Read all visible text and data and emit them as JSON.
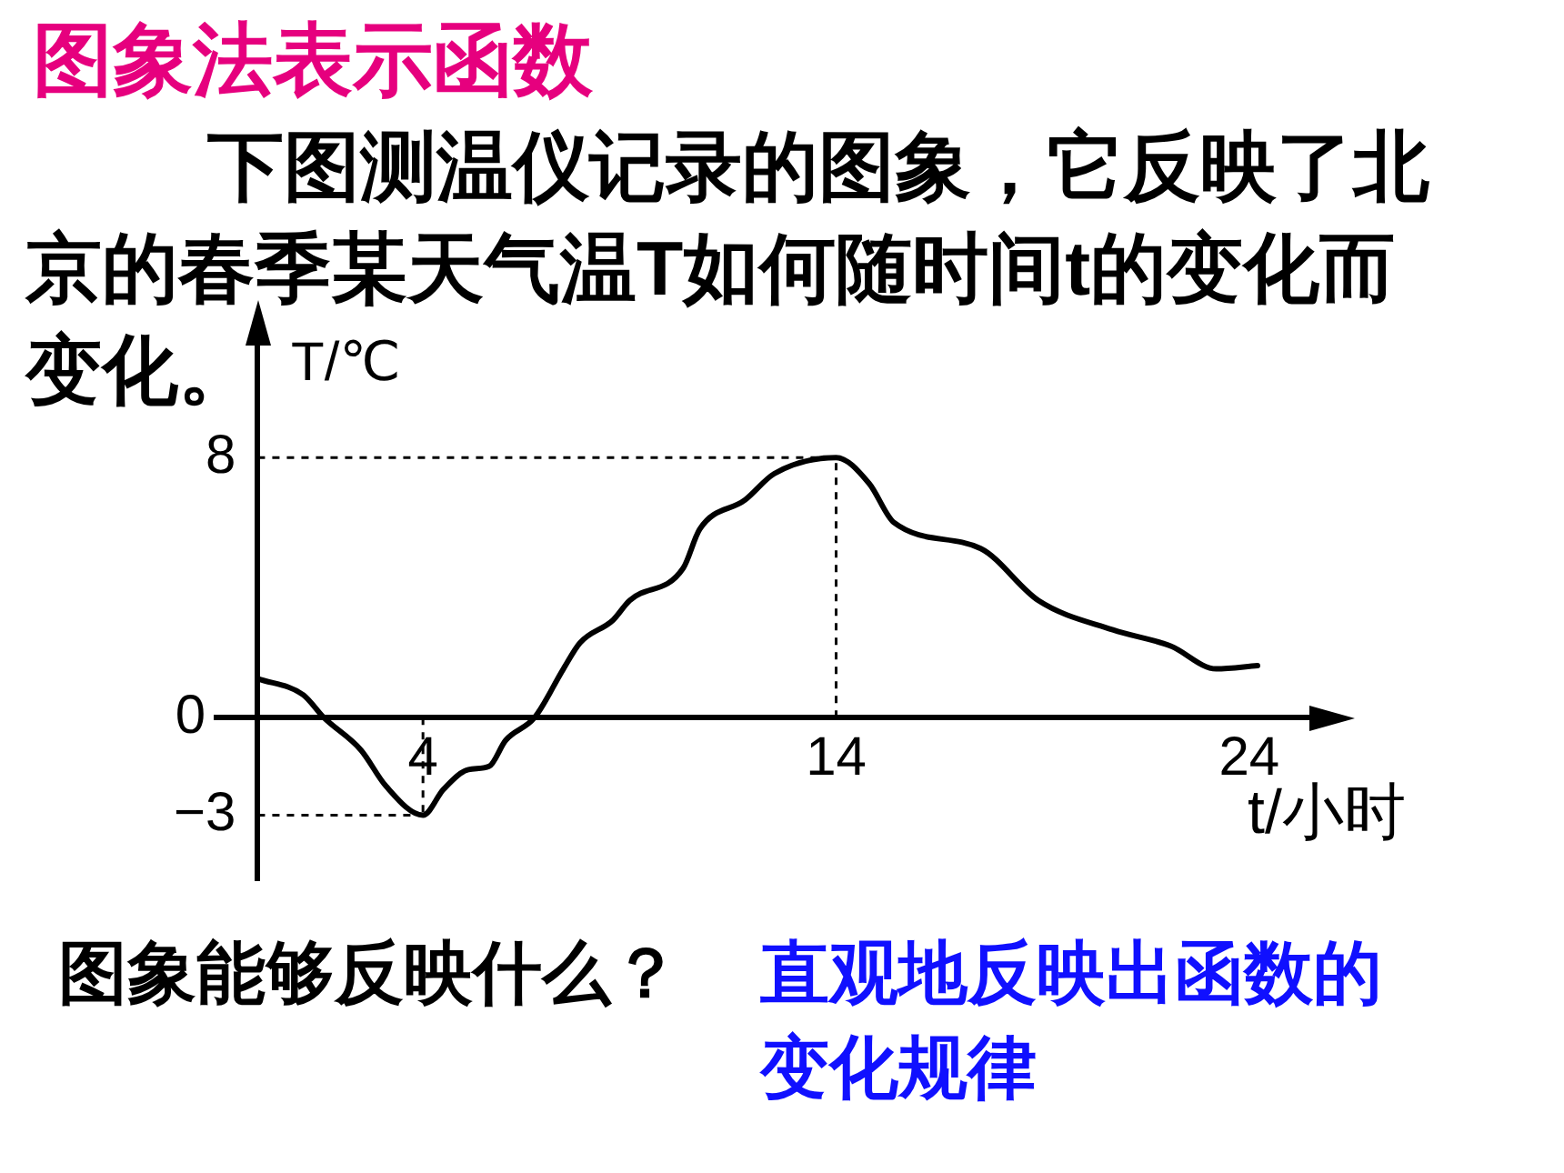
{
  "chart_data": {
    "type": "line",
    "title": "图象法表示函数",
    "subtitle": "下图测温仪记录的图象，它反映了北京的春季某天气温T如何随时间t的变化而变化。",
    "xlabel": "t/小时",
    "ylabel": "T/℃",
    "annotations": [
      "图象能够反映什么？",
      "直观地反映出函数的变化规律"
    ],
    "x": [
      0,
      1.1,
      1.6,
      2.5,
      3.1,
      4,
      4.5,
      5.1,
      5.6,
      6.0,
      6.7,
      7.4,
      7.8,
      8.6,
      9.0,
      10.3,
      10.7,
      11.8,
      12.5,
      14,
      14.8,
      15.4,
      17.5,
      18.9,
      20.7,
      22.1,
      23.2,
      24.2
    ],
    "values": [
      1.2,
      0.7,
      0,
      -1.0,
      -2.1,
      -3,
      -2.2,
      -1.6,
      -1.5,
      -0.7,
      0,
      1.5,
      2.3,
      3.0,
      3.6,
      4.6,
      5.8,
      6.7,
      7.5,
      8,
      7.2,
      6.0,
      5.2,
      3.6,
      2.7,
      2.2,
      1.5,
      1.6
    ],
    "color": "#000000",
    "xlim": [
      -1,
      25.5
    ],
    "ylim": [
      -5,
      11.5
    ],
    "xticks": [
      4,
      14,
      24
    ],
    "yticks": [
      {
        "value": -3,
        "label": "−3"
      },
      0,
      8
    ],
    "ref_lines": [
      {
        "axis": "y",
        "value": 8,
        "line_style": "dashed"
      },
      {
        "axis": "x",
        "value": 14,
        "line_style": "dashed"
      },
      {
        "axis": "x",
        "value": 4,
        "line_style": "dashed"
      },
      {
        "axis": "y",
        "value": -3,
        "line_style": "dashed"
      }
    ],
    "grid": false,
    "legend": false
  }
}
